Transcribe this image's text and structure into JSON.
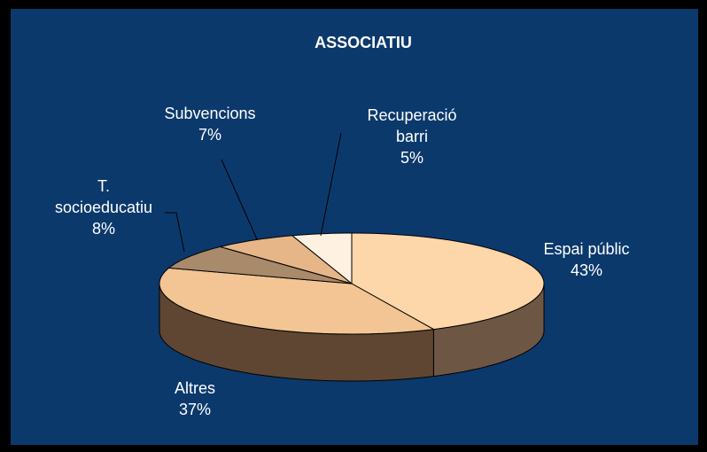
{
  "chart_data": {
    "type": "pie3d",
    "title": "ASSOCIATIU",
    "categories": [
      "Espai públic",
      "Altres",
      "T.\nsocioeducatiu",
      "Subvencions",
      "Recuperació\nbarri"
    ],
    "values": [
      43,
      37,
      8,
      7,
      5
    ],
    "value_labels": [
      "43%",
      "37%",
      "8%",
      "7%",
      "5%"
    ],
    "colors": [
      "#fdd6aa",
      "#f3c594",
      "#a98a6b",
      "#e6b688",
      "#fff1e2"
    ],
    "side_colors": [
      "#6e5644",
      "#5e4632",
      "#4a3828",
      "#5a4431",
      "#7a6656"
    ]
  }
}
